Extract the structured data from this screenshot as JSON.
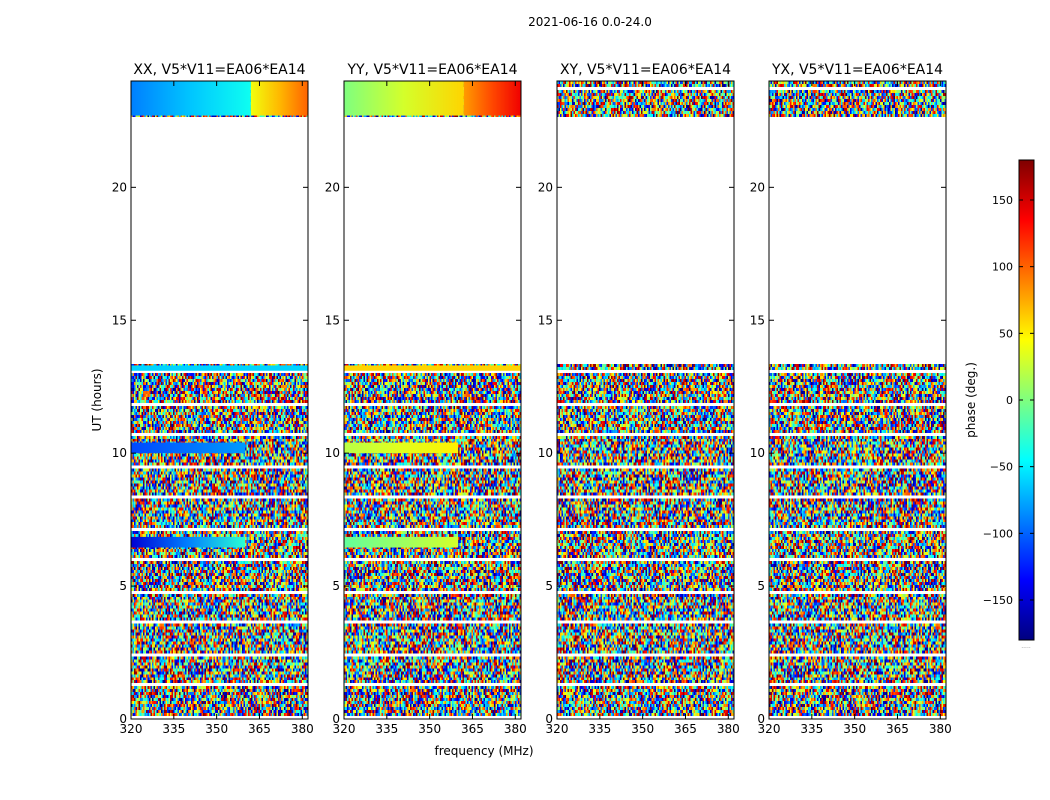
{
  "figure": {
    "suptitle": "2021-06-16 0.0-24.0",
    "xlabel": "frequency (MHz)",
    "ylabel": "UT (hours)",
    "cbar_label": "phase (deg.)",
    "cbar_footnote": "....."
  },
  "chart_data": {
    "type": "heatmap",
    "title": "2021-06-16 0.0-24.0",
    "xlabel": "frequency (MHz)",
    "ylabel": "UT (hours)",
    "xlim": [
      320,
      382
    ],
    "ylim": [
      0,
      24
    ],
    "x_ticks": [
      320,
      335,
      350,
      365,
      380
    ],
    "y_ticks": [
      0,
      5,
      10,
      15,
      20
    ],
    "colorbar": {
      "label": "phase (deg.)",
      "range": [
        -180,
        180
      ],
      "ticks": [
        -150,
        -100,
        -50,
        0,
        50,
        100,
        150
      ],
      "colormap": "jet",
      "colors": [
        "#00007f",
        "#0000ff",
        "#007fff",
        "#00ffff",
        "#7fff7f",
        "#ffff00",
        "#ff7f00",
        "#ff0000",
        "#7f0000"
      ]
    },
    "panels": [
      {
        "title": "XX, V5*V11=EA06*EA14",
        "data_rows": [
          [
            0.0,
            13.3
          ],
          [
            22.7,
            24.0
          ]
        ],
        "coherent_bands": [
          {
            "t": [
              22.7,
              24.0
            ],
            "f": [
              320,
              362
            ],
            "phase_start": -90,
            "phase_end": -40
          },
          {
            "t": [
              22.7,
              24.0
            ],
            "f": [
              362,
              382
            ],
            "phase_start": 40,
            "phase_end": 100
          },
          {
            "t": [
              13.1,
              13.3
            ],
            "f": [
              320,
              382
            ],
            "phase_start": -60,
            "phase_end": -60
          },
          {
            "t": [
              10.0,
              10.4
            ],
            "f": [
              320,
              360
            ],
            "phase_start": -110,
            "phase_end": -80
          },
          {
            "t": [
              6.45,
              6.85
            ],
            "f": [
              320,
              360
            ],
            "phase_start": -150,
            "phase_end": -30
          }
        ]
      },
      {
        "title": "YY, V5*V11=EA06*EA14",
        "data_rows": [
          [
            0.0,
            13.3
          ],
          [
            22.7,
            24.0
          ]
        ],
        "coherent_bands": [
          {
            "t": [
              22.7,
              24.0
            ],
            "f": [
              320,
              362
            ],
            "phase_start": 0,
            "phase_end": 60
          },
          {
            "t": [
              22.7,
              24.0
            ],
            "f": [
              362,
              382
            ],
            "phase_start": 80,
            "phase_end": 140
          },
          {
            "t": [
              13.1,
              13.3
            ],
            "f": [
              320,
              382
            ],
            "phase_start": 60,
            "phase_end": 60
          },
          {
            "t": [
              10.0,
              10.4
            ],
            "f": [
              320,
              360
            ],
            "phase_start": 20,
            "phase_end": 50
          },
          {
            "t": [
              6.45,
              6.85
            ],
            "f": [
              320,
              360
            ],
            "phase_start": -10,
            "phase_end": 30
          }
        ]
      },
      {
        "title": "XY, V5*V11=EA06*EA14",
        "data_rows": [
          [
            0.0,
            13.3
          ],
          [
            22.7,
            24.0
          ]
        ],
        "coherent_bands": []
      },
      {
        "title": "YX, V5*V11=EA06*EA14",
        "data_rows": [
          [
            0.0,
            13.3
          ],
          [
            22.7,
            24.0
          ]
        ],
        "coherent_bands": []
      }
    ]
  }
}
